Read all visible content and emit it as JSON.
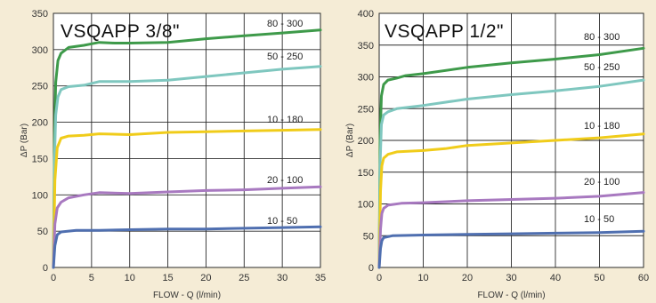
{
  "chart_data": [
    {
      "type": "line",
      "title": "VSQAPP 3/8\"",
      "xlabel": "FLOW - Q (l/min)",
      "ylabel": "ΔP (Bar)",
      "xlim": [
        0,
        35
      ],
      "ylim": [
        0,
        350
      ],
      "xticks": [
        0,
        5,
        10,
        15,
        20,
        25,
        30,
        35
      ],
      "yticks": [
        0,
        50,
        100,
        150,
        200,
        250,
        300,
        350
      ],
      "grid": true,
      "series": [
        {
          "name": "80 - 300",
          "color": "#3e9a4a",
          "points": [
            [
              0,
              0
            ],
            [
              0.15,
              180
            ],
            [
              0.3,
              255
            ],
            [
              0.6,
              285
            ],
            [
              1,
              295
            ],
            [
              2,
              303
            ],
            [
              4,
              306
            ],
            [
              5,
              308
            ],
            [
              6,
              310
            ],
            [
              8,
              309
            ],
            [
              10,
              309
            ],
            [
              15,
              310
            ],
            [
              20,
              315
            ],
            [
              25,
              319
            ],
            [
              30,
              323
            ],
            [
              35,
              327
            ]
          ]
        },
        {
          "name": "50 - 250",
          "color": "#7fc7bf",
          "points": [
            [
              0,
              0
            ],
            [
              0.15,
              150
            ],
            [
              0.3,
              210
            ],
            [
              0.6,
              235
            ],
            [
              1,
              245
            ],
            [
              2,
              249
            ],
            [
              4,
              251
            ],
            [
              6,
              256
            ],
            [
              10,
              256
            ],
            [
              15,
              258
            ],
            [
              20,
              263
            ],
            [
              25,
              268
            ],
            [
              30,
              273
            ],
            [
              35,
              277
            ]
          ]
        },
        {
          "name": "10 - 180",
          "color": "#f0cc1a",
          "points": [
            [
              0,
              0
            ],
            [
              0.2,
              120
            ],
            [
              0.5,
              165
            ],
            [
              1,
              178
            ],
            [
              2,
              181
            ],
            [
              4,
              182
            ],
            [
              6,
              184
            ],
            [
              10,
              183
            ],
            [
              15,
              186
            ],
            [
              20,
              187
            ],
            [
              25,
              188
            ],
            [
              30,
              189
            ],
            [
              35,
              190
            ]
          ]
        },
        {
          "name": "20 - 100",
          "color": "#a879c0",
          "points": [
            [
              0,
              0
            ],
            [
              0.2,
              60
            ],
            [
              0.5,
              82
            ],
            [
              1,
              90
            ],
            [
              2,
              96
            ],
            [
              4,
              100
            ],
            [
              6,
              103
            ],
            [
              10,
              102
            ],
            [
              15,
              104
            ],
            [
              20,
              106
            ],
            [
              25,
              107
            ],
            [
              30,
              109
            ],
            [
              35,
              111
            ]
          ]
        },
        {
          "name": "10 - 50",
          "color": "#4f6fb0",
          "points": [
            [
              0,
              0
            ],
            [
              0.2,
              30
            ],
            [
              0.5,
              45
            ],
            [
              1,
              49
            ],
            [
              3,
              51
            ],
            [
              6,
              51
            ],
            [
              10,
              52
            ],
            [
              15,
              53
            ],
            [
              20,
              53
            ],
            [
              25,
              54
            ],
            [
              30,
              55
            ],
            [
              35,
              56
            ]
          ]
        }
      ]
    },
    {
      "type": "line",
      "title": "VSQAPP 1/2\"",
      "xlabel": "FLOW - Q (l/min)",
      "ylabel": "ΔP (Bar)",
      "xlim": [
        0,
        60
      ],
      "ylim": [
        0,
        400
      ],
      "xticks": [
        0,
        10,
        20,
        30,
        40,
        50,
        60
      ],
      "yticks": [
        0,
        50,
        100,
        150,
        200,
        250,
        300,
        350,
        400
      ],
      "grid": true,
      "series": [
        {
          "name": "80 - 300",
          "color": "#3e9a4a",
          "points": [
            [
              0,
              0
            ],
            [
              0.2,
              200
            ],
            [
              0.5,
              270
            ],
            [
              1,
              288
            ],
            [
              2,
              295
            ],
            [
              4,
              298
            ],
            [
              6,
              302
            ],
            [
              10,
              305
            ],
            [
              20,
              315
            ],
            [
              30,
              322
            ],
            [
              40,
              328
            ],
            [
              50,
              335
            ],
            [
              60,
              345
            ]
          ]
        },
        {
          "name": "50 - 250",
          "color": "#7fc7bf",
          "points": [
            [
              0,
              0
            ],
            [
              0.2,
              160
            ],
            [
              0.5,
              225
            ],
            [
              1,
              240
            ],
            [
              2,
              245
            ],
            [
              4,
              250
            ],
            [
              10,
              255
            ],
            [
              20,
              265
            ],
            [
              30,
              272
            ],
            [
              40,
              278
            ],
            [
              50,
              285
            ],
            [
              60,
              295
            ]
          ]
        },
        {
          "name": "10 - 180",
          "color": "#f0cc1a",
          "points": [
            [
              0,
              0
            ],
            [
              0.3,
              120
            ],
            [
              0.6,
              160
            ],
            [
              1,
              172
            ],
            [
              2,
              178
            ],
            [
              4,
              182
            ],
            [
              10,
              184
            ],
            [
              15,
              187
            ],
            [
              20,
              192
            ],
            [
              30,
              196
            ],
            [
              40,
              200
            ],
            [
              50,
              204
            ],
            [
              60,
              210
            ]
          ]
        },
        {
          "name": "20 - 100",
          "color": "#a879c0",
          "points": [
            [
              0,
              0
            ],
            [
              0.3,
              60
            ],
            [
              0.6,
              85
            ],
            [
              1,
              93
            ],
            [
              2,
              98
            ],
            [
              5,
              101
            ],
            [
              10,
              102
            ],
            [
              20,
              105
            ],
            [
              30,
              107
            ],
            [
              40,
              109
            ],
            [
              50,
              112
            ],
            [
              60,
              118
            ]
          ]
        },
        {
          "name": "10 - 50",
          "color": "#4f6fb0",
          "points": [
            [
              0,
              0
            ],
            [
              0.3,
              30
            ],
            [
              0.6,
              42
            ],
            [
              1,
              47
            ],
            [
              3,
              50
            ],
            [
              10,
              51
            ],
            [
              20,
              52
            ],
            [
              30,
              53
            ],
            [
              40,
              54
            ],
            [
              50,
              55
            ],
            [
              60,
              57
            ]
          ]
        }
      ]
    }
  ]
}
